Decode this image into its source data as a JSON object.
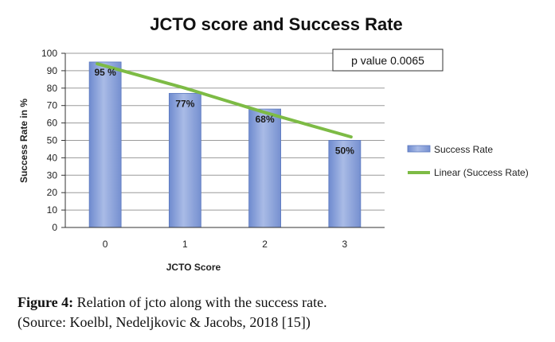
{
  "chart_data": {
    "type": "bar",
    "title": "JCTO score and Success Rate",
    "xlabel": "JCTO Score",
    "ylabel": "Success Rate in %",
    "categories": [
      "0",
      "1",
      "2",
      "3"
    ],
    "ylim": [
      0,
      100
    ],
    "yticks": [
      0,
      10,
      20,
      30,
      40,
      50,
      60,
      70,
      80,
      90,
      100
    ],
    "grid": true,
    "series": [
      {
        "name": "Success Rate",
        "type": "bar",
        "values": [
          95,
          77,
          68,
          50
        ],
        "data_labels": [
          "95 %",
          "77%",
          "68%",
          "50%"
        ]
      },
      {
        "name": "Linear (Success Rate)",
        "type": "line",
        "values": [
          94,
          80,
          66,
          52
        ]
      }
    ],
    "legend": {
      "placement": "right"
    },
    "annotation": "p value 0.0065",
    "colors": {
      "bar": "#8ea4d8",
      "bar_edge": "#5b78bf",
      "trend": "#7dbb45",
      "grid": "#9a9a9a"
    }
  },
  "caption": {
    "label": "Figure 4:",
    "text": " Relation of jcto along with the success rate.",
    "source": "(Source: Koelbl, Nedeljkovic & Jacobs, 2018 [15])"
  }
}
